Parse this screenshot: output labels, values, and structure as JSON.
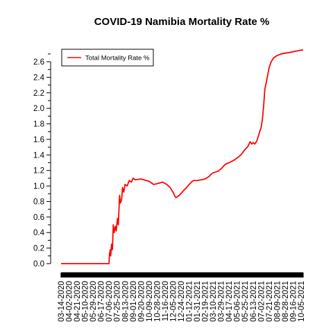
{
  "chart_data": {
    "type": "line",
    "title": "COVID-19 Namibia Mortality Rate %",
    "xlabel": "",
    "ylabel": "",
    "legend": {
      "placement": "top-left",
      "entries": [
        {
          "label": "Total Mortality Rate %",
          "color": "#ff0000"
        }
      ]
    },
    "grid": false,
    "x_range": [
      "2020-03-14",
      "2021-10-10"
    ],
    "ylim": [
      0,
      2.7
    ],
    "y_ticks": [
      0.0,
      0.2,
      0.4,
      0.6,
      0.8,
      1.0,
      1.2,
      1.4,
      1.6,
      1.8,
      2.0,
      2.2,
      2.4,
      2.6
    ],
    "y_tick_labels": [
      "0.0",
      "0.2",
      "0.4",
      "0.6",
      "0.8",
      "1.0",
      "1.2",
      "1.4",
      "1.6",
      "1.8",
      "2.0",
      "2.2",
      "2.4",
      "2.6"
    ],
    "x_tick_labels": [
      "03-14-2020",
      "04-02-2020",
      "04-21-2020",
      "05-10-2020",
      "05-29-2020",
      "06-17-2020",
      "07-06-2020",
      "07-25-2020",
      "08-13-2020",
      "09-01-2020",
      "09-20-2020",
      "10-09-2020",
      "10-28-2020",
      "11-16-2020",
      "12-05-2020",
      "12-24-2020",
      "01-12-2021",
      "01-31-2021",
      "02-19-2021",
      "03-10-2021",
      "03-29-2021",
      "04-17-2021",
      "05-06-2021",
      "05-25-2021",
      "06-13-2021",
      "07-02-2021",
      "07-21-2021",
      "08-09-2021",
      "08-28-2021",
      "09-16-2021",
      "10-05-2021"
    ],
    "series": [
      {
        "name": "Total Mortality Rate %",
        "color": "#ff0000",
        "points": [
          [
            "2020-03-14",
            0.0
          ],
          [
            "2020-06-01",
            0.0
          ],
          [
            "2020-07-06",
            0.0
          ],
          [
            "2020-07-07",
            0.12
          ],
          [
            "2020-07-09",
            0.18
          ],
          [
            "2020-07-10",
            0.1
          ],
          [
            "2020-07-12",
            0.25
          ],
          [
            "2020-07-14",
            0.18
          ],
          [
            "2020-07-16",
            0.5
          ],
          [
            "2020-07-18",
            0.4
          ],
          [
            "2020-07-21",
            0.48
          ],
          [
            "2020-07-23",
            0.42
          ],
          [
            "2020-07-26",
            0.58
          ],
          [
            "2020-07-28",
            0.5
          ],
          [
            "2020-07-31",
            0.88
          ],
          [
            "2020-08-02",
            0.78
          ],
          [
            "2020-08-05",
            0.83
          ],
          [
            "2020-08-07",
            0.98
          ],
          [
            "2020-08-10",
            0.92
          ],
          [
            "2020-08-13",
            1.02
          ],
          [
            "2020-08-18",
            1.0
          ],
          [
            "2020-08-23",
            1.07
          ],
          [
            "2020-08-28",
            1.05
          ],
          [
            "2020-09-01",
            1.1
          ],
          [
            "2020-09-06",
            1.08
          ],
          [
            "2020-09-20",
            1.09
          ],
          [
            "2020-10-09",
            1.06
          ],
          [
            "2020-10-20",
            1.02
          ],
          [
            "2020-10-28",
            1.03
          ],
          [
            "2020-11-10",
            1.05
          ],
          [
            "2020-11-20",
            1.02
          ],
          [
            "2020-11-28",
            0.98
          ],
          [
            "2020-12-05",
            0.92
          ],
          [
            "2020-12-10",
            0.86
          ],
          [
            "2020-12-12",
            0.85
          ],
          [
            "2020-12-20",
            0.88
          ],
          [
            "2020-12-28",
            0.93
          ],
          [
            "2021-01-06",
            0.98
          ],
          [
            "2021-01-14",
            1.03
          ],
          [
            "2021-01-22",
            1.07
          ],
          [
            "2021-02-01",
            1.07
          ],
          [
            "2021-02-10",
            1.08
          ],
          [
            "2021-02-19",
            1.09
          ],
          [
            "2021-02-28",
            1.12
          ],
          [
            "2021-03-05",
            1.15
          ],
          [
            "2021-03-10",
            1.17
          ],
          [
            "2021-03-22",
            1.19
          ],
          [
            "2021-03-29",
            1.22
          ],
          [
            "2021-04-08",
            1.28
          ],
          [
            "2021-04-17",
            1.3
          ],
          [
            "2021-04-28",
            1.33
          ],
          [
            "2021-05-06",
            1.36
          ],
          [
            "2021-05-15",
            1.4
          ],
          [
            "2021-05-25",
            1.47
          ],
          [
            "2021-06-01",
            1.51
          ],
          [
            "2021-06-06",
            1.57
          ],
          [
            "2021-06-10",
            1.54
          ],
          [
            "2021-06-13",
            1.56
          ],
          [
            "2021-06-17",
            1.54
          ],
          [
            "2021-06-22",
            1.58
          ],
          [
            "2021-06-26",
            1.65
          ],
          [
            "2021-06-30",
            1.72
          ],
          [
            "2021-07-02",
            1.75
          ],
          [
            "2021-07-05",
            1.85
          ],
          [
            "2021-07-08",
            2.02
          ],
          [
            "2021-07-11",
            2.25
          ],
          [
            "2021-07-15",
            2.35
          ],
          [
            "2021-07-21",
            2.52
          ],
          [
            "2021-07-26",
            2.6
          ],
          [
            "2021-08-01",
            2.65
          ],
          [
            "2021-08-09",
            2.68
          ],
          [
            "2021-08-18",
            2.7
          ],
          [
            "2021-08-28",
            2.71
          ],
          [
            "2021-09-08",
            2.72
          ],
          [
            "2021-09-16",
            2.73
          ],
          [
            "2021-09-26",
            2.74
          ],
          [
            "2021-10-05",
            2.75
          ],
          [
            "2021-10-10",
            2.75
          ]
        ]
      }
    ]
  }
}
